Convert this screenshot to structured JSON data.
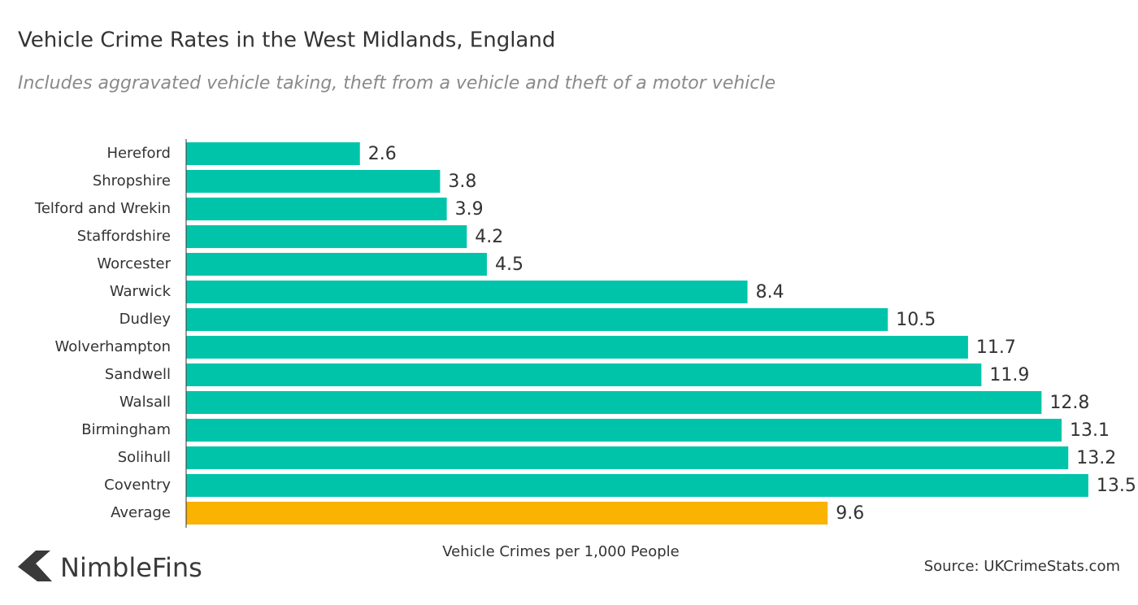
{
  "chart_data": {
    "type": "barh",
    "title": "Vehicle Crime Rates in the West Midlands, England",
    "subtitle": "Includes aggravated vehicle taking, theft from a vehicle and theft of a motor vehicle",
    "xlabel": "Vehicle Crimes per 1,000 People",
    "source": "Source: UKCrimeStats.com",
    "brand": "NimbleFins",
    "categories": [
      "Hereford",
      "Shropshire",
      "Telford and Wrekin",
      "Staffordshire",
      "Worcester",
      "Warwick",
      "Dudley",
      "Wolverhampton",
      "Sandwell",
      "Walsall",
      "Birmingham",
      "Solihull",
      "Coventry",
      "Average"
    ],
    "values": [
      2.6,
      3.8,
      3.9,
      4.2,
      4.5,
      8.4,
      10.5,
      11.7,
      11.9,
      12.8,
      13.1,
      13.2,
      13.5,
      9.6
    ],
    "colors": [
      "#00c4aa",
      "#00c4aa",
      "#00c4aa",
      "#00c4aa",
      "#00c4aa",
      "#00c4aa",
      "#00c4aa",
      "#00c4aa",
      "#00c4aa",
      "#00c4aa",
      "#00c4aa",
      "#00c4aa",
      "#00c4aa",
      "#f9b300"
    ],
    "xlim": [
      0,
      14
    ]
  }
}
